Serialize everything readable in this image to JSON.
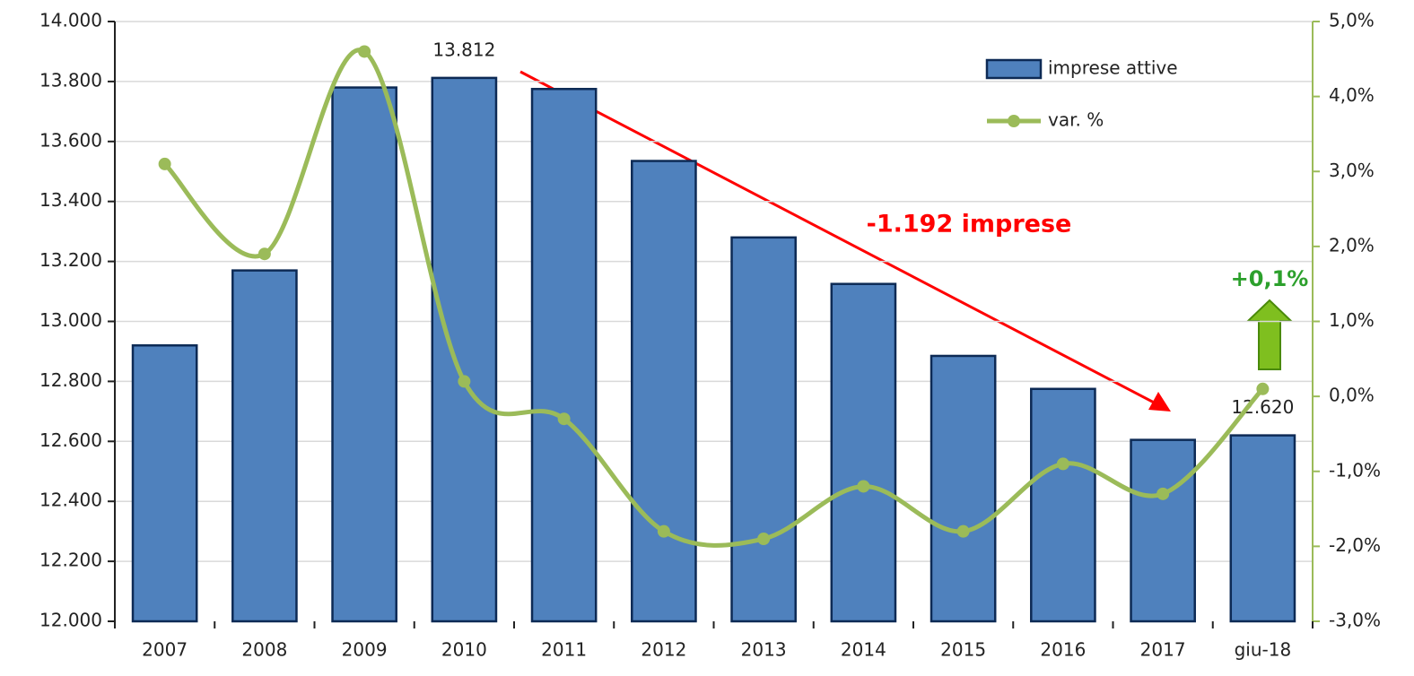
{
  "chart_data": {
    "type": "bar",
    "categories": [
      "2007",
      "2008",
      "2009",
      "2010",
      "2011",
      "2012",
      "2013",
      "2014",
      "2015",
      "2016",
      "2017",
      "giu-18"
    ],
    "series": [
      {
        "name": "imprese attive",
        "type": "bar",
        "color": "#4f81bd",
        "stroke": "#0d2a55",
        "values": [
          12920,
          13170,
          13780,
          13812,
          13775,
          13535,
          13280,
          13125,
          12885,
          12775,
          12605,
          12620
        ],
        "value_labels": [
          null,
          null,
          null,
          "13.812",
          null,
          null,
          null,
          null,
          null,
          null,
          null,
          "12.620"
        ]
      },
      {
        "name": "var. %",
        "type": "line",
        "axis": "y2",
        "color": "#9bbb59",
        "values": [
          3.1,
          1.9,
          4.6,
          0.2,
          -0.3,
          -1.8,
          -1.9,
          -1.2,
          -1.8,
          -0.9,
          -1.3,
          0.1
        ]
      }
    ],
    "ylim": [
      12000,
      14000
    ],
    "yticks": [
      {
        "value": 12000,
        "label": "12.000"
      },
      {
        "value": 12200,
        "label": "12.200"
      },
      {
        "value": 12400,
        "label": "12.400"
      },
      {
        "value": 12600,
        "label": "12.600"
      },
      {
        "value": 12800,
        "label": "12.800"
      },
      {
        "value": 13000,
        "label": "13.000"
      },
      {
        "value": 13200,
        "label": "13.200"
      },
      {
        "value": 13400,
        "label": "13.400"
      },
      {
        "value": 13600,
        "label": "13.600"
      },
      {
        "value": 13800,
        "label": "13.800"
      },
      {
        "value": 14000,
        "label": "14.000"
      }
    ],
    "y2lim": [
      -3,
      5
    ],
    "y2ticks": [
      {
        "value": -3,
        "label": "-3,0%"
      },
      {
        "value": -2,
        "label": "-2,0%"
      },
      {
        "value": -1,
        "label": "-1,0%"
      },
      {
        "value": 0,
        "label": "0,0%"
      },
      {
        "value": 1,
        "label": "1,0%"
      },
      {
        "value": 2,
        "label": "2,0%"
      },
      {
        "value": 3,
        "label": "3,0%"
      },
      {
        "value": 4,
        "label": "4,0%"
      },
      {
        "value": 5,
        "label": "5,0%"
      }
    ],
    "grid": true,
    "legend": "top-right",
    "annotations": [
      {
        "text": "-1.192 imprese",
        "color": "#ff0000"
      },
      {
        "text": "+0,1%",
        "color": "#2ca02c"
      }
    ]
  }
}
